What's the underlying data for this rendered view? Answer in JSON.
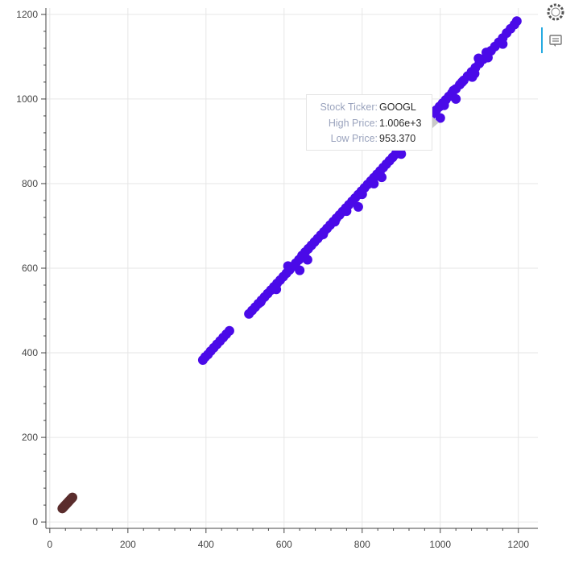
{
  "chart_data": {
    "type": "scatter",
    "title": "",
    "xlabel": "",
    "ylabel": "",
    "xlim": [
      -10,
      1250
    ],
    "ylim": [
      -15,
      1215
    ],
    "x_ticks": [
      0,
      200,
      400,
      600,
      800,
      1000,
      1200
    ],
    "y_ticks": [
      0,
      200,
      400,
      600,
      800,
      1000,
      1200
    ],
    "grid": true,
    "legend": "none",
    "series": [
      {
        "color": "#4a0ae8",
        "points": [
          [
            392,
            383
          ],
          [
            398,
            390
          ],
          [
            405,
            396
          ],
          [
            412,
            404
          ],
          [
            420,
            412
          ],
          [
            428,
            420
          ],
          [
            436,
            428
          ],
          [
            444,
            436
          ],
          [
            452,
            444
          ],
          [
            460,
            452
          ],
          [
            510,
            492
          ],
          [
            518,
            500
          ],
          [
            526,
            508
          ],
          [
            534,
            516
          ],
          [
            542,
            524
          ],
          [
            550,
            532
          ],
          [
            558,
            540
          ],
          [
            566,
            548
          ],
          [
            574,
            556
          ],
          [
            582,
            564
          ],
          [
            590,
            572
          ],
          [
            598,
            580
          ],
          [
            606,
            588
          ],
          [
            614,
            596
          ],
          [
            622,
            604
          ],
          [
            630,
            612
          ],
          [
            638,
            620
          ],
          [
            646,
            630
          ],
          [
            654,
            638
          ],
          [
            662,
            646
          ],
          [
            670,
            654
          ],
          [
            678,
            662
          ],
          [
            686,
            670
          ],
          [
            694,
            678
          ],
          [
            702,
            686
          ],
          [
            710,
            694
          ],
          [
            718,
            702
          ],
          [
            726,
            710
          ],
          [
            734,
            718
          ],
          [
            742,
            726
          ],
          [
            750,
            734
          ],
          [
            758,
            742
          ],
          [
            766,
            750
          ],
          [
            774,
            758
          ],
          [
            782,
            766
          ],
          [
            790,
            774
          ],
          [
            798,
            782
          ],
          [
            806,
            790
          ],
          [
            814,
            798
          ],
          [
            822,
            806
          ],
          [
            830,
            814
          ],
          [
            838,
            822
          ],
          [
            846,
            830
          ],
          [
            854,
            838
          ],
          [
            862,
            846
          ],
          [
            870,
            854
          ],
          [
            878,
            862
          ],
          [
            886,
            870
          ],
          [
            894,
            878
          ],
          [
            902,
            886
          ],
          [
            910,
            894
          ],
          [
            918,
            902
          ],
          [
            926,
            910
          ],
          [
            934,
            918
          ],
          [
            942,
            926
          ],
          [
            950,
            934
          ],
          [
            958,
            942
          ],
          [
            966,
            950
          ],
          [
            974,
            958
          ],
          [
            982,
            966
          ],
          [
            990,
            974
          ],
          [
            998,
            982
          ],
          [
            1006,
            990
          ],
          [
            1014,
            998
          ],
          [
            1022,
            1006
          ],
          [
            1030,
            1014
          ],
          [
            1040,
            1024
          ],
          [
            1050,
            1034
          ],
          [
            1060,
            1044
          ],
          [
            1070,
            1054
          ],
          [
            1080,
            1064
          ],
          [
            1090,
            1074
          ],
          [
            1100,
            1084
          ],
          [
            1110,
            1094
          ],
          [
            1120,
            1104
          ],
          [
            1130,
            1114
          ],
          [
            1140,
            1124
          ],
          [
            1150,
            1134
          ],
          [
            1160,
            1144
          ],
          [
            1170,
            1156
          ],
          [
            1180,
            1166
          ],
          [
            1190,
            1176
          ],
          [
            1196,
            1184
          ],
          [
            1000,
            955
          ],
          [
            1034,
            1020
          ],
          [
            1056,
            1040
          ],
          [
            1082,
            1052
          ],
          [
            1088,
            1060
          ],
          [
            1098,
            1096
          ],
          [
            1122,
            1098
          ],
          [
            1040,
            1000
          ],
          [
            640,
            595
          ],
          [
            660,
            620
          ],
          [
            700,
            680
          ],
          [
            760,
            735
          ],
          [
            800,
            775
          ],
          [
            790,
            745
          ],
          [
            850,
            815
          ],
          [
            900,
            870
          ],
          [
            960,
            930
          ],
          [
            1010,
            985
          ],
          [
            1118,
            1110
          ],
          [
            1160,
            1130
          ],
          [
            540,
            520
          ],
          [
            580,
            550
          ],
          [
            610,
            605
          ],
          [
            730,
            710
          ],
          [
            830,
            800
          ]
        ]
      },
      {
        "color": "#5a2d2d",
        "points": [
          [
            32,
            32
          ],
          [
            34,
            34
          ],
          [
            36,
            36
          ],
          [
            38,
            38
          ],
          [
            40,
            40
          ],
          [
            42,
            42
          ],
          [
            44,
            44
          ],
          [
            46,
            46
          ],
          [
            48,
            48
          ],
          [
            50,
            50
          ],
          [
            52,
            52
          ],
          [
            54,
            54
          ],
          [
            56,
            56
          ],
          [
            58,
            58
          ]
        ]
      }
    ]
  },
  "tooltip": {
    "rows": [
      {
        "label": "Stock Ticker:",
        "value": "GOOGL"
      },
      {
        "label": "High Price:",
        "value": "1.006e+3"
      },
      {
        "label": "Low Price:",
        "value": "953.370"
      }
    ]
  },
  "toolbar": {
    "logo_icon": "bokeh-logo-icon",
    "hover_icon": "hover-tooltip-icon",
    "accent": "#26aae1"
  }
}
